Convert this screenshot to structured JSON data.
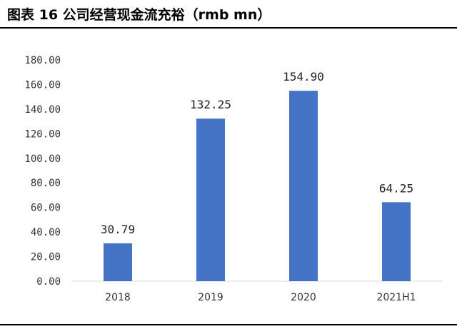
{
  "header": {
    "title": "图表 16 公司经营现金流充裕（rmb mn）"
  },
  "chart_data": {
    "type": "bar",
    "title": "",
    "xlabel": "",
    "ylabel": "",
    "categories": [
      "2018",
      "2019",
      "2020",
      "2021H1"
    ],
    "values": [
      30.79,
      132.25,
      154.9,
      64.25
    ],
    "value_labels": [
      "30.79",
      "132.25",
      "154.90",
      "64.25"
    ],
    "ylim": [
      0,
      180
    ],
    "yticks": [
      "0.00",
      "20.00",
      "40.00",
      "60.00",
      "80.00",
      "100.00",
      "120.00",
      "140.00",
      "160.00",
      "180.00"
    ],
    "grid": false,
    "legend": "none",
    "bar_color": "#4472C4"
  }
}
